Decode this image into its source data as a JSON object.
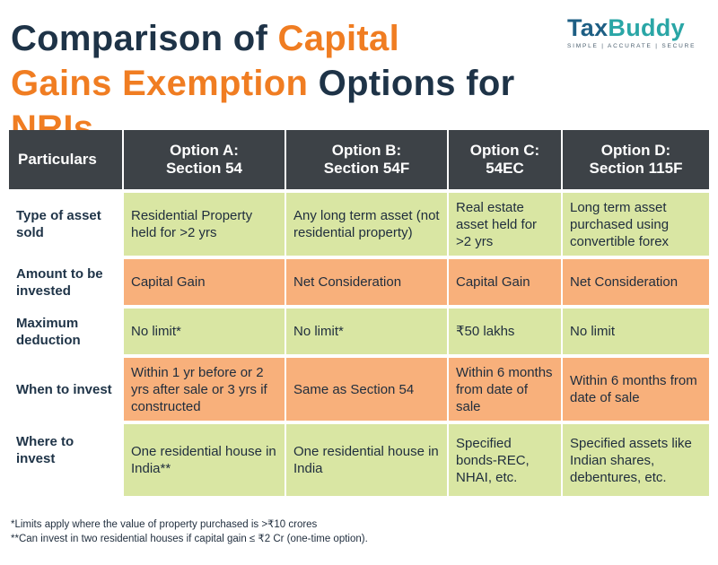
{
  "title": {
    "part1": "Comparison of ",
    "part2": "Capital",
    "part3": "Gains Exemption",
    "part4": " Options for ",
    "part5": "NRIs"
  },
  "logo": {
    "word1": "Tax",
    "word2": "Buddy",
    "tagline": "SIMPLE | ACCURATE | SECURE"
  },
  "table": {
    "headers": [
      "Particulars",
      "Option A:\nSection 54",
      "Option B:\nSection 54F",
      "Option C:\n54EC",
      "Option D:\nSection 115F"
    ],
    "rows": [
      {
        "label": "Type of asset sold",
        "cells": [
          "Residential Property held for >2 yrs",
          "Any long term asset (not residential property)",
          "Real estate asset held for >2 yrs",
          "Long term asset purchased using convertible forex"
        ]
      },
      {
        "label": "Amount to be invested",
        "cells": [
          "Capital Gain",
          "Net Consideration",
          "Capital Gain",
          "Net Consideration"
        ]
      },
      {
        "label": "Maximum deduction",
        "cells": [
          "No limit*",
          "No limit*",
          "₹50 lakhs",
          "No limit"
        ]
      },
      {
        "label": "When to invest",
        "cells": [
          "Within 1 yr before or 2 yrs after sale or 3 yrs if constructed",
          "Same as Section 54",
          "Within 6 months from date of sale",
          "Within 6 months from date of sale"
        ]
      },
      {
        "label": "Where to invest",
        "cells": [
          "One residential house in India**",
          "One residential house in India",
          "Specified bonds-REC, NHAI, etc.",
          "Specified assets like Indian shares, debentures, etc."
        ]
      }
    ]
  },
  "footnotes": [
    "*Limits apply where the value of property purchased is >₹10 crores",
    "**Can invest in two residential houses if capital gain ≤ ₹2 Cr (one-time option)."
  ],
  "colors": {
    "navy": "#1e3347",
    "orange_text": "#f07d22",
    "header_bg": "#3d4247",
    "green_row": "#d9e6a3",
    "orange_row": "#f8b07b"
  }
}
